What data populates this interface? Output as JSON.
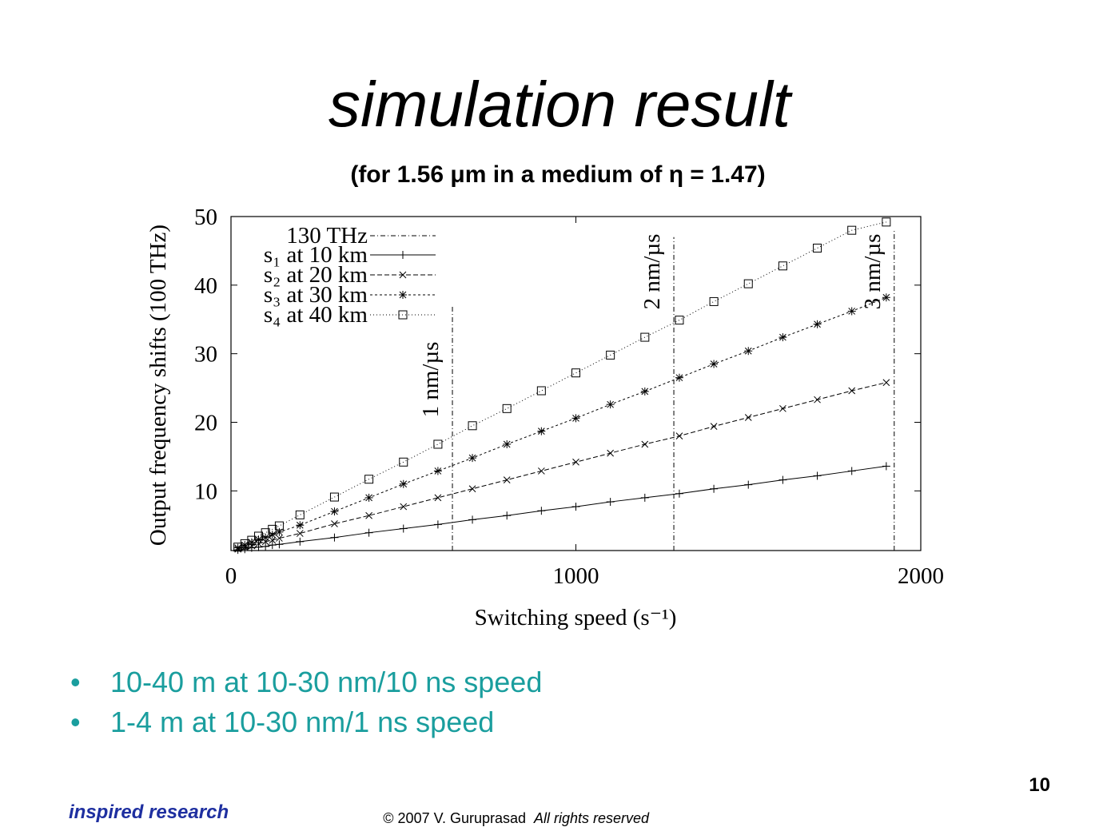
{
  "slide": {
    "title": "simulation result",
    "subtitle": "(for 1.56 μm in a medium of η = 1.47)",
    "bullets": [
      "10-40 m at  10-30 nm/10 ns speed",
      "1-4 m at 10-30 nm/1 ns speed"
    ],
    "page_number": "10",
    "logo": "inspired research",
    "copyright": "© 2007 V. Guruprasad",
    "rights": "All rights reserved"
  },
  "chart_data": {
    "type": "line",
    "x_label": "Switching speed (s⁻¹)",
    "y_label": "Output frequency shifts (100 THz)",
    "xlim": [
      0,
      2000
    ],
    "xticks": [
      0,
      1000,
      2000
    ],
    "ylim": [
      1.3,
      50
    ],
    "yticks": [
      10,
      20,
      30,
      40,
      50
    ],
    "x": [
      20,
      40,
      60,
      80,
      100,
      120,
      140,
      200,
      300,
      400,
      500,
      600,
      700,
      800,
      900,
      1000,
      1100,
      1200,
      1300,
      1400,
      1500,
      1600,
      1700,
      1800,
      1900
    ],
    "reference": {
      "name": "130 THz",
      "color": "#000000",
      "lines": [
        {
          "label": "1 nm/µs",
          "x": 642,
          "top": 37
        },
        {
          "label": "2 nm/µs",
          "x": 1284,
          "top": 47
        },
        {
          "label": "3 nm/µs",
          "x": 1923,
          "top": 48
        }
      ]
    },
    "series": [
      {
        "name": "s₁ at 10 km",
        "color": "#000000",
        "marker": "plus",
        "dash": "none",
        "values": [
          1.4,
          1.5,
          1.7,
          1.8,
          1.9,
          2.1,
          2.2,
          2.6,
          3.2,
          3.9,
          4.5,
          5.1,
          5.8,
          6.4,
          7.1,
          7.7,
          8.4,
          9.0,
          9.6,
          10.3,
          10.9,
          11.6,
          12.2,
          12.9,
          13.6
        ]
      },
      {
        "name": "s₂ at 20 km",
        "color": "#000000",
        "marker": "cross",
        "dash": "6 3",
        "values": [
          1.5,
          1.8,
          2.0,
          2.3,
          2.6,
          2.8,
          3.1,
          3.8,
          5.2,
          6.4,
          7.7,
          9.0,
          10.3,
          11.6,
          12.9,
          14.2,
          15.5,
          16.8,
          18.0,
          19.4,
          20.7,
          22.0,
          23.3,
          24.6,
          25.8
        ]
      },
      {
        "name": "s₃ at 30 km",
        "color": "#000000",
        "marker": "star",
        "dash": "3 3",
        "values": [
          1.7,
          2.1,
          2.5,
          2.9,
          3.2,
          3.6,
          4.0,
          5.0,
          7.0,
          9.0,
          11.0,
          12.9,
          14.8,
          16.8,
          18.7,
          20.6,
          22.6,
          24.5,
          26.5,
          28.5,
          30.4,
          32.4,
          34.3,
          36.2,
          38.2
        ]
      },
      {
        "name": "s₄ at 40 km",
        "color": "#000000",
        "marker": "square",
        "dash": "1 3",
        "values": [
          1.8,
          2.3,
          2.8,
          3.4,
          3.9,
          4.4,
          4.9,
          6.5,
          9.1,
          11.7,
          14.2,
          16.8,
          19.5,
          22.0,
          24.6,
          27.2,
          29.8,
          32.4,
          34.9,
          37.6,
          40.2,
          42.8,
          45.4,
          48.0,
          49.2
        ]
      }
    ]
  }
}
